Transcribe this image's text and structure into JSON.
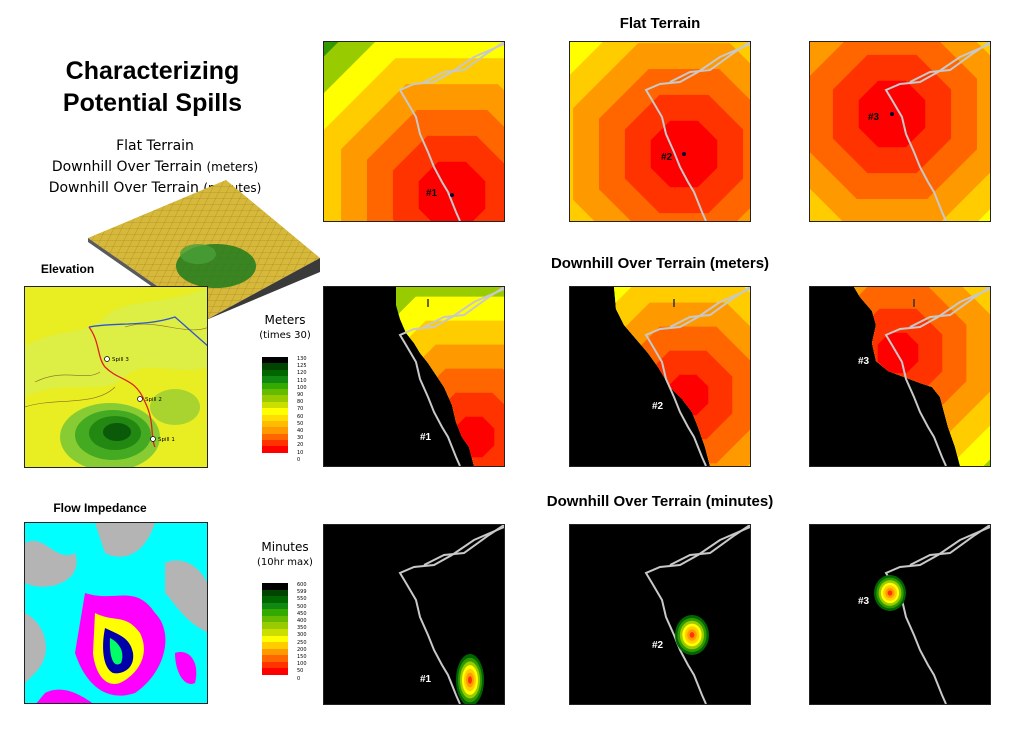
{
  "title_line1": "Characterizing",
  "title_line2": "Potential Spills",
  "subtitle": {
    "line1": "Flat Terrain",
    "line2_main": "Downhill Over Terrain",
    "line2_unit": "(meters)",
    "line3_main": "Downhill Over Terrain",
    "line3_unit": "(minutes)"
  },
  "sections": {
    "flat": "Flat Terrain",
    "meters": "Downhill Over Terrain (meters)",
    "minutes": "Downhill Over Terrain (minutes)"
  },
  "panels": {
    "elevation": "Elevation",
    "flow_impedance": "Flow Impedance",
    "elevation_spills": [
      "Spill 3",
      "Spill 2",
      "Spill 1"
    ]
  },
  "spill_labels": [
    "#1",
    "#2",
    "#3"
  ],
  "legend_meters": {
    "title": "Meters",
    "subtitle": "(times 30)",
    "ticks": [
      "130",
      "125",
      "120",
      "110",
      "100",
      "90",
      "80",
      "70",
      "60",
      "50",
      "40",
      "30",
      "20",
      "10",
      "0"
    ]
  },
  "legend_minutes": {
    "title": "Minutes",
    "subtitle": "(10hr max)",
    "ticks": [
      "600",
      "599",
      "550",
      "500",
      "450",
      "400",
      "350",
      "300",
      "250",
      "200",
      "150",
      "100",
      "50",
      "0"
    ]
  },
  "colors": {
    "dark_green": "#006600",
    "green": "#339900",
    "lime": "#99cc00",
    "yellow": "#ffff00",
    "light_orange": "#ffcc00",
    "orange": "#ff9900",
    "dark_orange": "#ff6600",
    "red": "#ff3300",
    "bright_red": "#ff0000",
    "road": "#c8c8c8",
    "cyan": "#00ffff",
    "magenta": "#ff00ff",
    "gray": "#b4b4b4"
  }
}
